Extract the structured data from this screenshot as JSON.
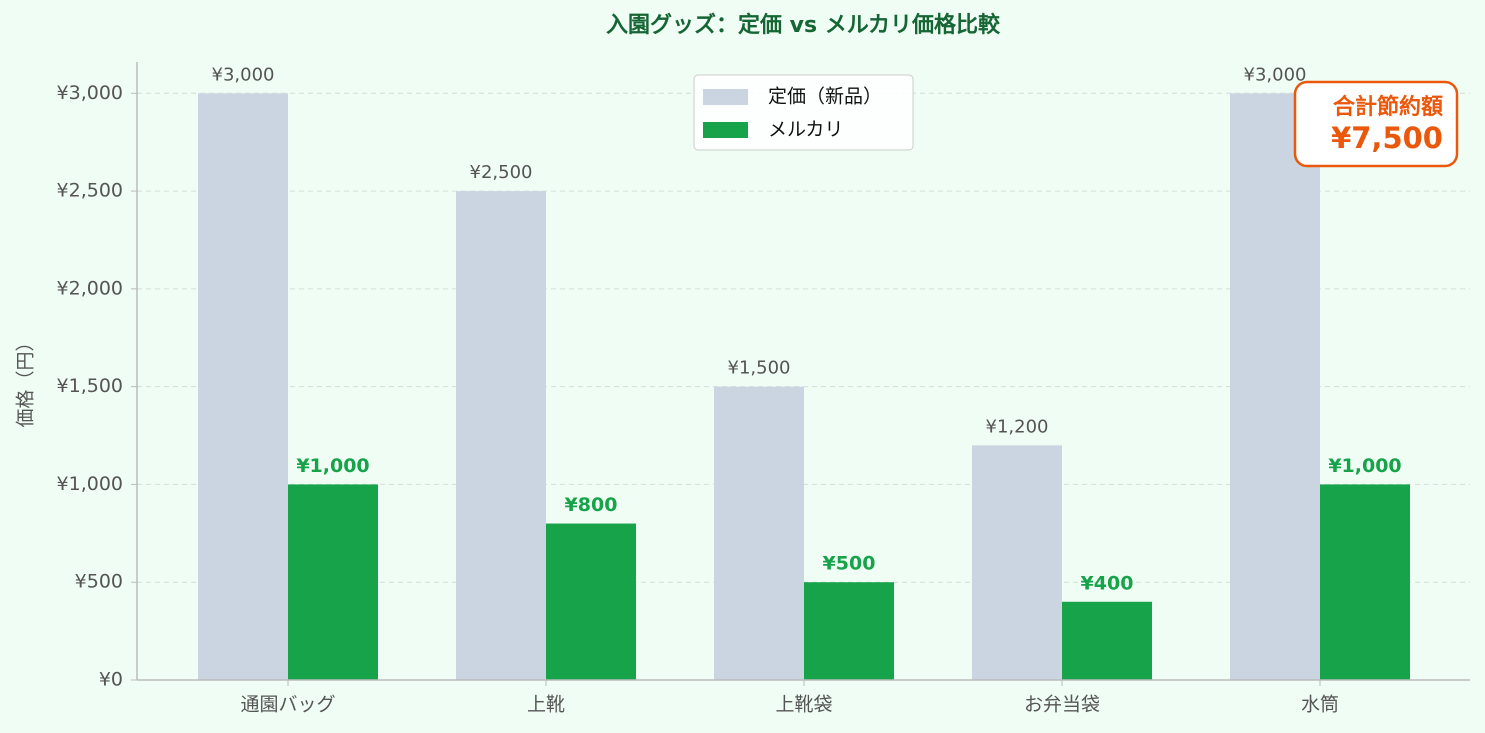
{
  "chart_data": {
    "type": "bar",
    "title": "入園グッズ：定価 vs メルカリ価格比較",
    "ylabel": "価格（円）",
    "categories": [
      "通園バッグ",
      "上靴",
      "上靴袋",
      "お弁当袋",
      "水筒"
    ],
    "series": [
      {
        "name": "定価（新品）",
        "color": "#cbd5e1",
        "values": [
          3000,
          2500,
          1500,
          1200,
          3000
        ],
        "value_labels": [
          "¥3,000",
          "¥2,500",
          "¥1,500",
          "¥1,200",
          "¥3,000"
        ]
      },
      {
        "name": "メルカリ",
        "color": "#16a34a",
        "values": [
          1000,
          800,
          500,
          400,
          1000
        ],
        "value_labels": [
          "¥1,000",
          "¥800",
          "¥500",
          "¥400",
          "¥1,000"
        ]
      }
    ],
    "ylim": [
      0,
      3160
    ],
    "yticks": [
      {
        "value": 0,
        "label": "¥0"
      },
      {
        "value": 500,
        "label": "¥500"
      },
      {
        "value": 1000,
        "label": "¥1,000"
      },
      {
        "value": 1500,
        "label": "¥1,500"
      },
      {
        "value": 2000,
        "label": "¥2,000"
      },
      {
        "value": 2500,
        "label": "¥2,500"
      },
      {
        "value": 3000,
        "label": "¥3,000"
      }
    ],
    "grid": true,
    "legend": "upper center",
    "annotation": {
      "title": "合計節約額",
      "text": "¥7,500"
    }
  }
}
